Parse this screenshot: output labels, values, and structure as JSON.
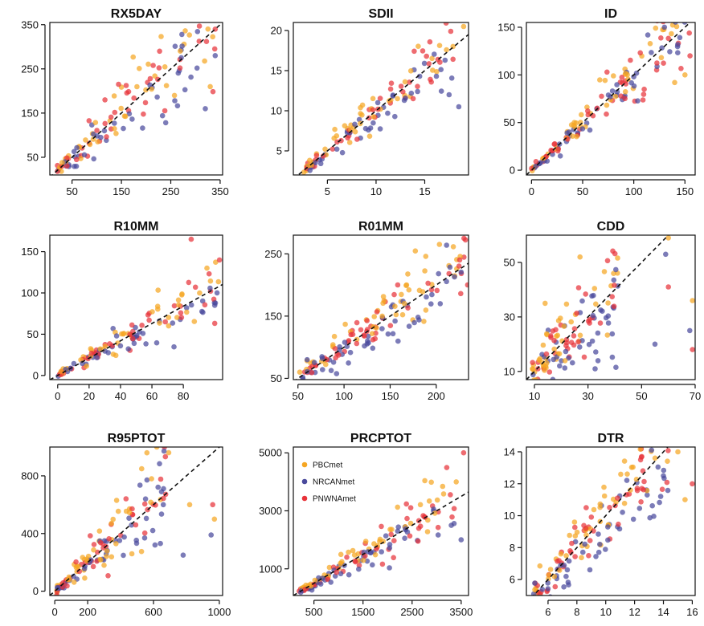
{
  "colors": {
    "PBCmet": "#f5a623",
    "NRCANmet": "#4a4a9c",
    "PNWNAmet": "#e8333a"
  },
  "legend": [
    {
      "label": "PBCmet",
      "color": "#f5a623"
    },
    {
      "label": "NRCANmet",
      "color": "#4a4a9c"
    },
    {
      "label": "PNWNAmet",
      "color": "#e8333a"
    }
  ],
  "chart_data": [
    {
      "type": "scatter",
      "title": "RX5DAY",
      "xlim": [
        5,
        355
      ],
      "ylim": [
        10,
        355
      ],
      "xticks": [
        50,
        150,
        250,
        350
      ],
      "yticks": [
        50,
        150,
        250,
        350
      ],
      "one_to_one": true,
      "spread": 0.22,
      "range": [
        20,
        340
      ],
      "n": 130,
      "extras": [
        [
          340,
          340,
          "PNWNAmet"
        ],
        [
          320,
          160,
          "NRCANmet"
        ],
        [
          340,
          280,
          "NRCANmet"
        ],
        [
          330,
          210,
          "PBCmet"
        ]
      ]
    },
    {
      "type": "scatter",
      "title": "SDII",
      "xlim": [
        1.5,
        19.5
      ],
      "ylim": [
        2,
        21
      ],
      "xticks": [
        5,
        10,
        15
      ],
      "yticks": [
        5,
        10,
        15,
        20
      ],
      "one_to_one": true,
      "spread": 0.14,
      "range": [
        2.5,
        18
      ],
      "n": 130,
      "extras": [
        [
          19,
          20.5,
          "PBCmet"
        ],
        [
          17.5,
          12,
          "NRCANmet"
        ],
        [
          18.5,
          10.5,
          "NRCANmet"
        ]
      ]
    },
    {
      "type": "scatter",
      "title": "ID",
      "xlim": [
        -5,
        160
      ],
      "ylim": [
        -5,
        155
      ],
      "xticks": [
        0,
        50,
        100,
        150
      ],
      "yticks": [
        0,
        50,
        100,
        150
      ],
      "one_to_one": true,
      "spread": 0.14,
      "range": [
        0,
        155
      ],
      "n": 150,
      "extras": [
        [
          130,
          150,
          "NRCANmet"
        ],
        [
          150,
          100,
          "PBCmet"
        ],
        [
          155,
          120,
          "PNWNAmet"
        ],
        [
          140,
          92,
          "PBCmet"
        ]
      ]
    },
    {
      "type": "scatter",
      "title": "R10MM",
      "xlim": [
        -5,
        105
      ],
      "ylim": [
        -5,
        170
      ],
      "xticks": [
        0,
        20,
        40,
        60,
        80
      ],
      "yticks": [
        0,
        50,
        100,
        150
      ],
      "slope": 1.05,
      "spread": 0.2,
      "range": [
        0,
        105
      ],
      "n": 130,
      "extras": [
        [
          85,
          165,
          "PNWNAmet"
        ],
        [
          103,
          140,
          "PNWNAmet"
        ],
        [
          100,
          85,
          "NRCANmet"
        ],
        [
          95,
          130,
          "PBCmet"
        ]
      ]
    },
    {
      "type": "scatter",
      "title": "R01MM",
      "xlim": [
        45,
        235
      ],
      "ylim": [
        48,
        280
      ],
      "xticks": [
        50,
        100,
        150,
        200
      ],
      "yticks": [
        50,
        150,
        250
      ],
      "one_to_one": true,
      "spread": 0.12,
      "range": [
        55,
        235
      ],
      "n": 150,
      "extras": [
        [
          230,
          275,
          "PNWNAmet"
        ],
        [
          52,
          60,
          "PBCmet"
        ],
        [
          60,
          80,
          "NRCANmet"
        ]
      ]
    },
    {
      "type": "scatter",
      "title": "CDD",
      "xlim": [
        7,
        70
      ],
      "ylim": [
        7,
        60
      ],
      "xticks": [
        10,
        30,
        50,
        70
      ],
      "yticks": [
        10,
        30,
        50
      ],
      "one_to_one": true,
      "spread": 0.28,
      "range": [
        9,
        42
      ],
      "n": 130,
      "extras": [
        [
          60,
          59,
          "PBCmet"
        ],
        [
          59,
          53,
          "NRCANmet"
        ],
        [
          60,
          41,
          "PNWNAmet"
        ],
        [
          69,
          36,
          "PBCmet"
        ],
        [
          68,
          25,
          "NRCANmet"
        ],
        [
          69,
          18,
          "PNWNAmet"
        ],
        [
          27,
          52,
          "PBCmet"
        ],
        [
          55,
          20,
          "NRCANmet"
        ],
        [
          14,
          35,
          "PBCmet"
        ]
      ]
    },
    {
      "type": "scatter",
      "title": "R95PTOT",
      "xlim": [
        -30,
        1020
      ],
      "ylim": [
        -30,
        1000
      ],
      "xticks": [
        0,
        200,
        600,
        1000
      ],
      "yticks": [
        0,
        400,
        800
      ],
      "one_to_one": true,
      "spread": 0.28,
      "range": [
        10,
        700
      ],
      "n": 140,
      "extras": [
        [
          560,
          960,
          "PBCmet"
        ],
        [
          620,
          1000,
          "PBCmet"
        ],
        [
          960,
          600,
          "PNWNAmet"
        ],
        [
          950,
          390,
          "NRCANmet"
        ],
        [
          970,
          500,
          "PBCmet"
        ],
        [
          780,
          250,
          "NRCANmet"
        ],
        [
          820,
          600,
          "PBCmet"
        ]
      ]
    },
    {
      "type": "scatter",
      "title": "PRCPTOT",
      "xlim": [
        80,
        3650
      ],
      "ylim": [
        80,
        5200
      ],
      "xticks": [
        500,
        1500,
        2500,
        3500
      ],
      "yticks": [
        1000,
        3000,
        5000
      ],
      "one_to_one": true,
      "spread": 0.16,
      "range": [
        200,
        3400
      ],
      "n": 150,
      "extras": [
        [
          3550,
          5000,
          "PNWNAmet"
        ],
        [
          3400,
          4000,
          "PBCmet"
        ],
        [
          3500,
          2000,
          "NRCANmet"
        ],
        [
          3300,
          2500,
          "NRCANmet"
        ]
      ]
    },
    {
      "type": "scatter",
      "title": "DTR",
      "xlim": [
        4.5,
        16.2
      ],
      "ylim": [
        5,
        14.3
      ],
      "xticks": [
        6,
        8,
        10,
        12,
        14,
        16
      ],
      "yticks": [
        6,
        8,
        10,
        12,
        14
      ],
      "one_to_one": true,
      "spread": 0.1,
      "range": [
        5,
        15
      ],
      "n": 170,
      "extras": [
        [
          15,
          14,
          "PBCmet"
        ],
        [
          16,
          12,
          "PNWNAmet"
        ],
        [
          15.5,
          11,
          "PBCmet"
        ],
        [
          14,
          12.5,
          "NRCANmet"
        ]
      ]
    }
  ]
}
